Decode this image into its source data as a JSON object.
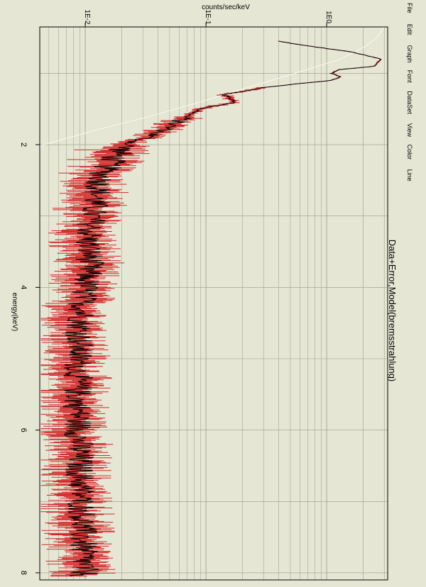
{
  "menu": [
    "File",
    "Edit",
    "Graph",
    "Font",
    "DataSet",
    "View",
    "Color",
    "Line"
  ],
  "colors": {
    "background": "#e6e6d4",
    "frame": "#000000",
    "data": "#000000",
    "error": "#d42a2a",
    "model": "#f8f8f0",
    "grid": "#9a9a90"
  },
  "chart_data": {
    "type": "line",
    "title": "Data+Error,Model(bremsstrahlung)",
    "xlabel": "energy(keV)",
    "ylabel": "counts/sec/keV",
    "xlim": [
      0.35,
      8.1
    ],
    "ylim": [
      0.0042,
      3.2
    ],
    "yscale": "log",
    "xticks": [
      2,
      4,
      6,
      8
    ],
    "yticks": [
      {
        "value": 0.01,
        "label": "1E-2"
      },
      {
        "value": 0.1,
        "label": "1E-1"
      },
      {
        "value": 1,
        "label": "1E0"
      }
    ],
    "grid": true,
    "series": [
      {
        "role": "data-with-errors",
        "x": [
          0.55,
          0.6,
          0.7,
          0.8,
          0.9,
          0.95,
          1.0,
          1.05,
          1.1,
          1.15,
          1.2,
          1.3,
          1.4,
          1.5,
          1.6,
          1.7,
          1.8,
          1.9,
          2.0,
          2.2,
          2.4,
          2.6,
          2.8,
          3.0,
          3.2,
          3.4,
          3.6,
          3.8,
          4.0,
          4.2,
          4.4,
          4.6,
          4.8,
          5.0,
          5.2,
          5.4,
          5.6,
          5.8,
          6.0,
          6.2,
          6.4,
          6.6,
          6.8,
          7.0,
          7.2,
          7.4,
          7.6,
          7.8,
          8.0
        ],
        "y": [
          0.4,
          0.6,
          1.6,
          2.8,
          2.5,
          1.25,
          1.1,
          1.3,
          1.1,
          0.55,
          0.3,
          0.14,
          0.18,
          0.09,
          0.07,
          0.055,
          0.045,
          0.032,
          0.022,
          0.017,
          0.014,
          0.013,
          0.012,
          0.0115,
          0.011,
          0.0105,
          0.011,
          0.0105,
          0.01,
          0.0095,
          0.0095,
          0.009,
          0.009,
          0.0088,
          0.0087,
          0.0087,
          0.0086,
          0.0088,
          0.0088,
          0.0089,
          0.009,
          0.009,
          0.0092,
          0.0093,
          0.0095,
          0.0095,
          0.0096,
          0.0097,
          0.0098
        ]
      },
      {
        "role": "model",
        "x": [
          0.35,
          0.5,
          0.6,
          0.8,
          1.0,
          1.2,
          1.4,
          1.6,
          1.8,
          2.0,
          2.1
        ],
        "y": [
          3.0,
          2.6,
          2.2,
          1.3,
          0.55,
          0.22,
          0.09,
          0.035,
          0.012,
          0.0045,
          0.003
        ]
      }
    ]
  }
}
